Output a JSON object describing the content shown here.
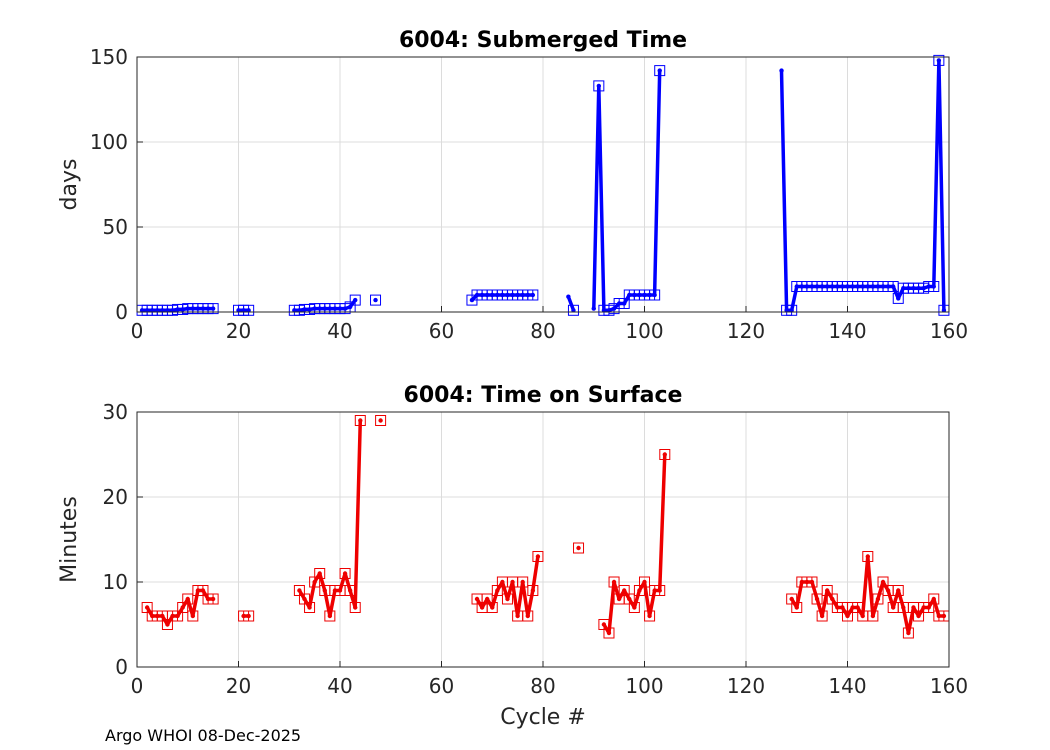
{
  "footer": "Argo WHOI 08-Dec-2025",
  "chart_data": [
    {
      "type": "line",
      "title": "6004: Submerged Time",
      "xlabel": "",
      "ylabel": "days",
      "xlim": [
        0,
        160
      ],
      "ylim": [
        0,
        150
      ],
      "xticks": [
        0,
        20,
        40,
        60,
        80,
        100,
        120,
        140,
        160
      ],
      "yticks": [
        0,
        50,
        100,
        150
      ],
      "color": "#0000ff",
      "marker": "square",
      "grid": true,
      "series": [
        {
          "name": "Submerged Time",
          "x": [
            1,
            2,
            3,
            4,
            5,
            6,
            7,
            8,
            9,
            10,
            11,
            12,
            13,
            14,
            15,
            null,
            20,
            21,
            22,
            null,
            31,
            32,
            33,
            34,
            35,
            36,
            37,
            38,
            39,
            40,
            41,
            42,
            43,
            null,
            47,
            null,
            66,
            67,
            68,
            69,
            70,
            71,
            72,
            73,
            74,
            75,
            76,
            77,
            78,
            null,
            85,
            86,
            null,
            90,
            91,
            92,
            93,
            94,
            95,
            96,
            97,
            98,
            99,
            100,
            101,
            102,
            103,
            null,
            127,
            128,
            129,
            130,
            131,
            132,
            133,
            134,
            135,
            136,
            137,
            138,
            139,
            140,
            141,
            142,
            143,
            144,
            145,
            146,
            147,
            148,
            149,
            150,
            151,
            152,
            153,
            154,
            155,
            156,
            157,
            158,
            159
          ],
          "y": [
            1,
            1,
            1,
            1,
            1,
            1,
            1,
            1.5,
            1.5,
            2,
            2,
            2,
            2,
            2,
            2,
            null,
            1,
            1,
            1,
            null,
            1,
            1,
            1.5,
            1.5,
            2,
            2,
            2,
            2,
            2,
            2,
            2,
            3,
            7,
            null,
            7,
            null,
            7,
            10,
            10,
            10,
            10,
            10,
            10,
            10,
            10,
            10,
            10,
            10,
            10,
            null,
            9,
            1,
            null,
            2,
            133,
            1,
            1,
            2,
            5,
            5,
            10,
            10,
            10,
            10,
            10,
            10,
            142,
            null,
            142,
            1,
            1,
            15,
            15,
            15,
            15,
            15,
            15,
            15,
            15,
            15,
            15,
            15,
            15,
            15,
            15,
            15,
            15,
            15,
            15,
            15,
            15,
            8,
            14,
            14,
            14,
            14,
            14,
            15,
            15,
            148,
            1
          ],
          "markers": [
            1,
            2,
            3,
            4,
            5,
            6,
            7,
            8,
            9,
            10,
            11,
            12,
            13,
            14,
            15,
            20,
            21,
            22,
            31,
            32,
            33,
            34,
            35,
            36,
            37,
            38,
            39,
            40,
            41,
            42,
            43,
            47,
            66,
            67,
            68,
            69,
            70,
            71,
            72,
            73,
            74,
            75,
            76,
            77,
            78,
            86,
            91,
            92,
            93,
            94,
            95,
            96,
            97,
            98,
            99,
            100,
            101,
            102,
            103,
            128,
            129,
            130,
            131,
            132,
            133,
            134,
            135,
            136,
            137,
            138,
            139,
            140,
            141,
            142,
            143,
            144,
            145,
            146,
            147,
            148,
            149,
            150,
            151,
            152,
            153,
            154,
            155,
            156,
            157,
            158,
            159
          ]
        }
      ]
    },
    {
      "type": "line",
      "title": "6004: Time on Surface",
      "xlabel": "Cycle #",
      "ylabel": "Minutes",
      "xlim": [
        0,
        160
      ],
      "ylim": [
        0,
        30
      ],
      "xticks": [
        0,
        20,
        40,
        60,
        80,
        100,
        120,
        140,
        160
      ],
      "yticks": [
        0,
        10,
        20,
        30
      ],
      "color": "#ee0000",
      "marker": "square",
      "grid": true,
      "series": [
        {
          "name": "Time on Surface",
          "x": [
            2,
            3,
            4,
            5,
            6,
            7,
            8,
            9,
            10,
            11,
            12,
            13,
            14,
            15,
            null,
            21,
            22,
            null,
            32,
            33,
            34,
            35,
            36,
            37,
            38,
            39,
            40,
            41,
            42,
            43,
            44,
            null,
            48,
            null,
            67,
            68,
            69,
            70,
            71,
            72,
            73,
            74,
            75,
            76,
            77,
            78,
            79,
            null,
            87,
            null,
            92,
            93,
            94,
            95,
            96,
            97,
            98,
            99,
            100,
            101,
            102,
            103,
            104,
            null,
            129,
            130,
            131,
            132,
            133,
            134,
            135,
            136,
            137,
            138,
            139,
            140,
            141,
            142,
            143,
            144,
            145,
            146,
            147,
            148,
            149,
            150,
            151,
            152,
            153,
            154,
            155,
            156,
            157,
            158,
            159
          ],
          "y": [
            7,
            6,
            6,
            6,
            5,
            6,
            6,
            7,
            8,
            6,
            9,
            9,
            8,
            8,
            null,
            6,
            6,
            null,
            9,
            8,
            7,
            10,
            11,
            9,
            6,
            9,
            9,
            11,
            9,
            7,
            29,
            null,
            29,
            null,
            8,
            7,
            8,
            7,
            9,
            10,
            8,
            10,
            6,
            10,
            6,
            9,
            13,
            null,
            14,
            null,
            5,
            4,
            10,
            8,
            9,
            8,
            7,
            9,
            10,
            6,
            9,
            9,
            25,
            null,
            8,
            7,
            10,
            10,
            10,
            8,
            6,
            9,
            8,
            7,
            7,
            6,
            7,
            7,
            6,
            13,
            6,
            8,
            10,
            9,
            7,
            9,
            7,
            4,
            7,
            6,
            7,
            7,
            8,
            6,
            6
          ]
        }
      ]
    }
  ]
}
